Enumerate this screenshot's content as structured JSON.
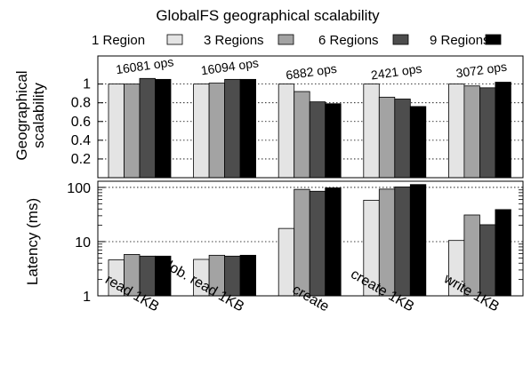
{
  "chart_data": [
    {
      "type": "bar",
      "title": "GlobalFS geographical scalability",
      "ylabel_lines": [
        "Geographical",
        "scalability"
      ],
      "categories": [
        "read 1KB",
        "glob. read 1KB",
        "create",
        "create 1KB",
        "write 1KB"
      ],
      "annotations": [
        "16081 ops",
        "16094 ops",
        "6882 ops",
        "2421 ops",
        "3072 ops"
      ],
      "series": [
        {
          "name": "1 Region",
          "color": "#e4e4e4",
          "values": [
            1.0,
            1.0,
            1.0,
            1.0,
            1.0
          ]
        },
        {
          "name": "3 Regions",
          "color": "#a3a3a3",
          "values": [
            1.0,
            1.01,
            0.92,
            0.86,
            0.98
          ]
        },
        {
          "name": "6 Regions",
          "color": "#4d4d4d",
          "values": [
            1.06,
            1.05,
            0.81,
            0.84,
            0.96
          ]
        },
        {
          "name": "9 Regions",
          "color": "#000000",
          "values": [
            1.05,
            1.05,
            0.79,
            0.76,
            1.02
          ]
        }
      ],
      "yticks": [
        "0.2",
        "0.4",
        "0.6",
        "0.8",
        "1"
      ],
      "ylim": [
        0,
        1.3
      ],
      "grid": true,
      "legend": "top"
    },
    {
      "type": "bar",
      "ylabel": "Latency (ms)",
      "yscale": "log",
      "categories": [
        "read 1KB",
        "glob. read 1KB",
        "create",
        "create 1KB",
        "write 1KB"
      ],
      "series": [
        {
          "name": "1 Region",
          "color": "#e4e4e4",
          "values": [
            4.6,
            4.7,
            17.5,
            58,
            10.5
          ]
        },
        {
          "name": "3 Regions",
          "color": "#a3a3a3",
          "values": [
            5.8,
            5.6,
            92,
            93,
            31
          ]
        },
        {
          "name": "6 Regions",
          "color": "#4d4d4d",
          "values": [
            5.4,
            5.4,
            85,
            102,
            20.5
          ]
        },
        {
          "name": "9 Regions",
          "color": "#000000",
          "values": [
            5.4,
            5.6,
            98,
            113,
            39
          ]
        }
      ],
      "yticks": [
        "1",
        "10",
        "100"
      ],
      "ylim": [
        1,
        130
      ],
      "grid": true
    }
  ]
}
